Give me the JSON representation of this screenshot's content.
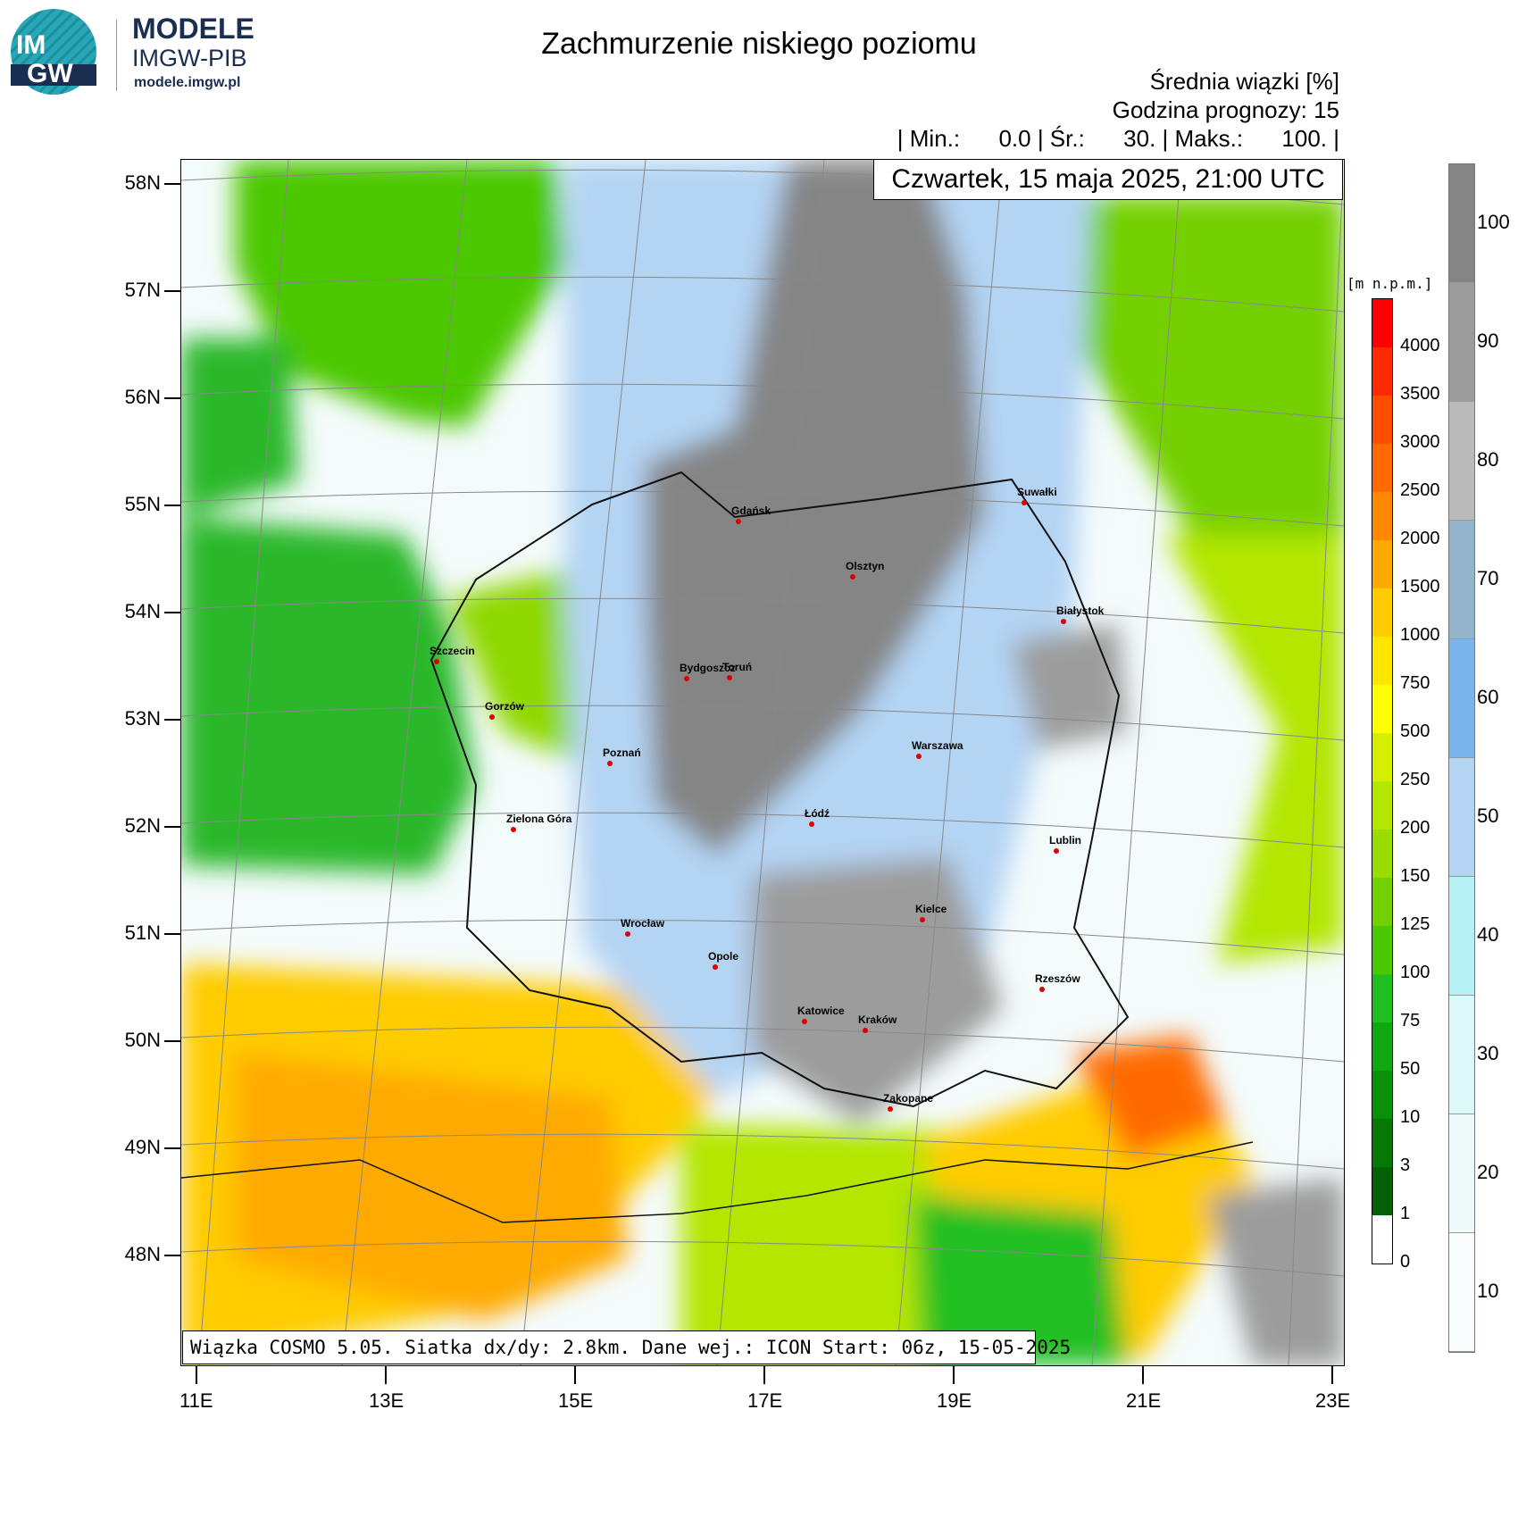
{
  "logo": {
    "line1": "IM",
    "line2": "GW",
    "brand": "MODELE",
    "sub": "IMGW-PIB",
    "url": "modele.imgw.pl"
  },
  "title": "Zachmurzenie niskiego poziomu",
  "header": {
    "line1": "Średnia wiązki [%]",
    "line2": "Godzina prognozy: 15",
    "line3": "| Min.:      0.0 | Śr.:      30. | Maks.:      100. |"
  },
  "date": "Czwartek, 15 maja 2025, 21:00 UTC",
  "footer": "Wiązka COSMO 5.05. Siatka dx/dy: 2.8km. Dane wej.: ICON Start: 06z, 15-05-2025",
  "lat_labels": [
    "58N",
    "57N",
    "56N",
    "55N",
    "54N",
    "53N",
    "52N",
    "51N",
    "50N",
    "49N",
    "48N"
  ],
  "lon_labels": [
    "11E",
    "13E",
    "15E",
    "17E",
    "19E",
    "21E",
    "23E"
  ],
  "cities": [
    "Gdańsk",
    "Olsztyn",
    "Suwałki",
    "Białystok",
    "Szczecin",
    "Bydgoszcz",
    "Toruń",
    "Gorzów",
    "Poznań",
    "Warszawa",
    "Łódź",
    "Zielona Góra",
    "Lublin",
    "Wrocław",
    "Kielce",
    "Opole",
    "Rzeszów",
    "Katowice",
    "Kraków",
    "Zakopane"
  ],
  "terrain_scale": {
    "unit": "[m n.p.m.]",
    "labels": [
      "4000",
      "3500",
      "3000",
      "2500",
      "2000",
      "1500",
      "1000",
      "750",
      "500",
      "250",
      "200",
      "150",
      "125",
      "100",
      "75",
      "50",
      "10",
      "3",
      "1",
      "0"
    ],
    "colors": [
      "#ff0000",
      "#ff2a00",
      "#ff4d00",
      "#ff6a00",
      "#ff8800",
      "#ffaa00",
      "#ffcc00",
      "#ffe600",
      "#ffff00",
      "#d4f000",
      "#b4e600",
      "#98dc00",
      "#74d000",
      "#4cc800",
      "#20c020",
      "#10a810",
      "#089008",
      "#067806",
      "#056005",
      "#ffffff"
    ]
  },
  "cloud_scale": {
    "labels": [
      "100",
      "90",
      "80",
      "70",
      "60",
      "50",
      "40",
      "30",
      "20",
      "10"
    ],
    "colors": [
      "#858585",
      "#9c9c9c",
      "#bababa",
      "#94b4cc",
      "#7cb4ec",
      "#b4d4f4",
      "#b4f0f4",
      "#dcf8f8",
      "#eefafa",
      "#f8fcfc"
    ]
  }
}
